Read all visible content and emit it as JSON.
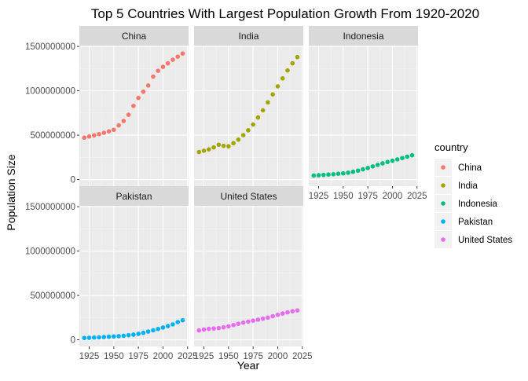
{
  "chart_data": {
    "type": "scatter",
    "title": "Top 5 Countries With Largest Population Growth From 1920-2020",
    "xlabel": "Year",
    "ylabel": "Population Size",
    "xlim": [
      1915,
      2026
    ],
    "ylim": [
      -75000000,
      1510000000
    ],
    "xticks": [
      1925,
      1950,
      1975,
      2000,
      2025
    ],
    "xtick_labels": [
      "1925",
      "1950",
      "1975",
      "2000",
      "2025"
    ],
    "yticks": [
      0,
      500000000,
      1000000000,
      1500000000
    ],
    "ytick_labels": [
      "0",
      "500000000",
      "1000000000",
      "1500000000"
    ],
    "grid": true,
    "facet_layout": {
      "rows": 2,
      "cols": 3
    },
    "legend": {
      "title": "country",
      "position": "right"
    },
    "series": [
      {
        "name": "China",
        "color": "#F8766D",
        "facet": "China",
        "x": [
          1920,
          1925,
          1930,
          1935,
          1940,
          1945,
          1950,
          1955,
          1960,
          1965,
          1970,
          1975,
          1980,
          1985,
          1990,
          1995,
          2000,
          2005,
          2010,
          2015,
          2020
        ],
        "y": [
          472000000,
          485000000,
          498000000,
          512000000,
          527000000,
          543000000,
          560000000,
          610000000,
          660000000,
          730000000,
          830000000,
          920000000,
          990000000,
          1060000000,
          1160000000,
          1225000000,
          1270000000,
          1310000000,
          1350000000,
          1385000000,
          1420000000
        ]
      },
      {
        "name": "India",
        "color": "#A3A500",
        "facet": "India",
        "x": [
          1920,
          1925,
          1930,
          1935,
          1940,
          1945,
          1950,
          1955,
          1960,
          1965,
          1970,
          1975,
          1980,
          1985,
          1990,
          1995,
          2000,
          2005,
          2010,
          2015,
          2020
        ],
        "y": [
          310000000,
          325000000,
          340000000,
          362000000,
          392000000,
          380000000,
          375000000,
          410000000,
          450000000,
          500000000,
          555000000,
          620000000,
          700000000,
          780000000,
          870000000,
          960000000,
          1050000000,
          1140000000,
          1230000000,
          1310000000,
          1380000000
        ]
      },
      {
        "name": "Indonesia",
        "color": "#00BF7D",
        "facet": "Indonesia",
        "x": [
          1920,
          1925,
          1930,
          1935,
          1940,
          1945,
          1950,
          1955,
          1960,
          1965,
          1970,
          1975,
          1980,
          1985,
          1990,
          1995,
          2000,
          2005,
          2010,
          2015,
          2020
        ],
        "y": [
          45000000,
          48000000,
          52000000,
          56000000,
          60000000,
          65000000,
          70000000,
          77000000,
          88000000,
          100000000,
          115000000,
          130000000,
          148000000,
          165000000,
          182000000,
          198000000,
          212000000,
          227000000,
          242000000,
          258000000,
          273000000
        ]
      },
      {
        "name": "Pakistan",
        "color": "#00B0F6",
        "facet": "Pakistan",
        "x": [
          1920,
          1925,
          1930,
          1935,
          1940,
          1945,
          1950,
          1955,
          1960,
          1965,
          1970,
          1975,
          1980,
          1985,
          1990,
          1995,
          2000,
          2005,
          2010,
          2015,
          2020
        ],
        "y": [
          20000000,
          22000000,
          25000000,
          28000000,
          31000000,
          34000000,
          37000000,
          41000000,
          45000000,
          52000000,
          58000000,
          67000000,
          78000000,
          93000000,
          107000000,
          122000000,
          138000000,
          155000000,
          174000000,
          199000000,
          220000000
        ]
      },
      {
        "name": "United States",
        "color": "#E76BF3",
        "facet": "United States",
        "x": [
          1920,
          1925,
          1930,
          1935,
          1940,
          1945,
          1950,
          1955,
          1960,
          1965,
          1970,
          1975,
          1980,
          1985,
          1990,
          1995,
          2000,
          2005,
          2010,
          2015,
          2020
        ],
        "y": [
          106000000,
          115000000,
          123000000,
          127000000,
          132000000,
          140000000,
          152000000,
          166000000,
          180000000,
          194000000,
          205000000,
          216000000,
          227000000,
          238000000,
          250000000,
          266000000,
          282000000,
          296000000,
          309000000,
          321000000,
          331000000
        ]
      }
    ]
  }
}
